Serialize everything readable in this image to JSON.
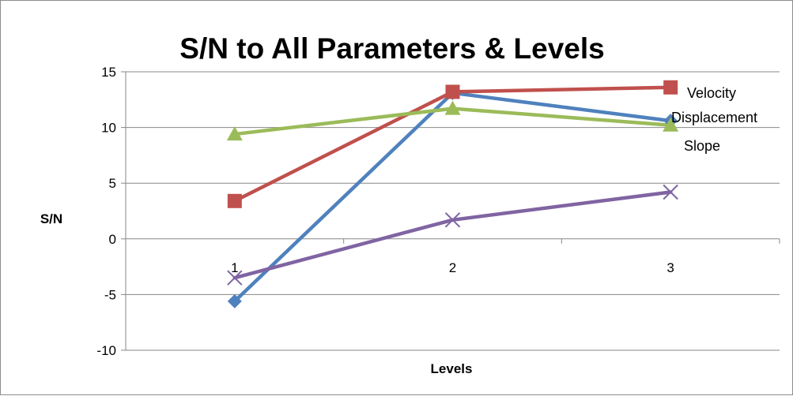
{
  "chart_data": {
    "type": "line",
    "title": "S/N to All Parameters & Levels",
    "xlabel": "Levels",
    "ylabel": "S/N",
    "categories": [
      "1",
      "2",
      "3"
    ],
    "ylim": [
      -10,
      15
    ],
    "yticks": [
      15,
      10,
      5,
      0,
      -5,
      -10
    ],
    "ytick_labels": [
      "15",
      "10",
      "5",
      "0",
      "-5",
      "-10"
    ],
    "grid": true,
    "legend_position": "right",
    "series": [
      {
        "name": "",
        "color": "#4f81bd",
        "marker": "diamond",
        "values": [
          -5.6,
          13.1,
          10.6
        ]
      },
      {
        "name": "Velocity",
        "color": "#c0504d",
        "marker": "square",
        "values": [
          3.4,
          13.2,
          13.6
        ]
      },
      {
        "name": "Displacement",
        "color": "#9bbb59",
        "marker": "triangle",
        "values": [
          9.4,
          11.7,
          10.2
        ]
      },
      {
        "name": "Slope",
        "color": "#8064a2",
        "marker": "x",
        "values": [
          -3.5,
          1.7,
          4.2
        ]
      }
    ]
  }
}
